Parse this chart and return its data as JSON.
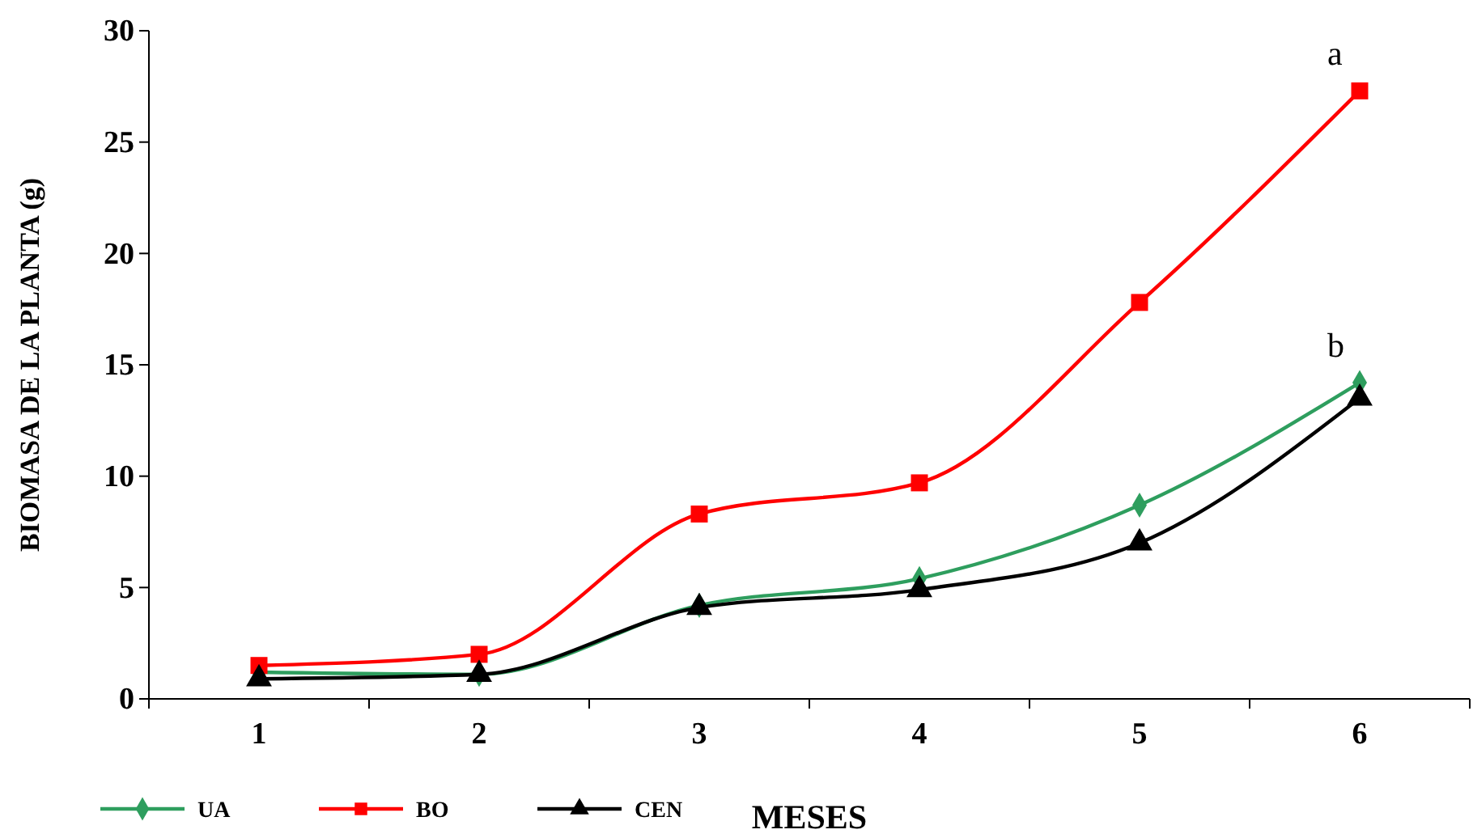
{
  "chart_data": {
    "type": "line",
    "xlabel": "MESES",
    "ylabel": "BIOMASA DE LA PLANTA (g)",
    "categories": [
      "1",
      "2",
      "3",
      "4",
      "5",
      "6"
    ],
    "series": [
      {
        "name": "UA",
        "color": "#2e9e5e",
        "marker": "diamond",
        "values": [
          1.2,
          1.1,
          4.2,
          5.4,
          8.7,
          14.2
        ]
      },
      {
        "name": "BO",
        "color": "#ff0000",
        "marker": "square",
        "values": [
          1.5,
          2.0,
          8.3,
          9.7,
          17.8,
          27.3
        ]
      },
      {
        "name": "CEN",
        "color": "#000000",
        "marker": "triangle",
        "values": [
          0.9,
          1.1,
          4.1,
          4.9,
          7.0,
          13.5
        ]
      }
    ],
    "ylim": [
      0,
      30
    ],
    "yticks": [
      0,
      5,
      10,
      15,
      20,
      25,
      30
    ],
    "grid": false,
    "legend": "bottom left",
    "line_style": "solid",
    "annotations": [
      "a",
      "b"
    ]
  }
}
